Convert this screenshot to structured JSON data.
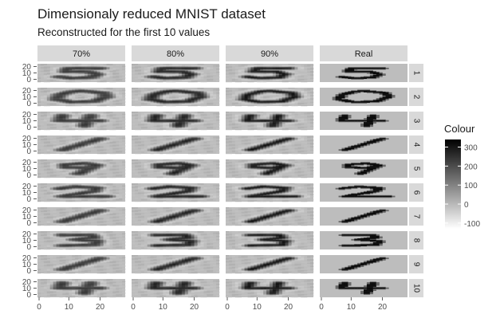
{
  "title": "Dimensionaly reduced MNIST dataset",
  "subtitle": "Reconstructed for the first 10 values",
  "chart_data": {
    "type": "heatmap",
    "panel_columns": [
      "70%",
      "80%",
      "90%",
      "Real"
    ],
    "panel_rows": [
      "1",
      "2",
      "3",
      "4",
      "5",
      "6",
      "7",
      "8",
      "9",
      "10"
    ],
    "x_ticks": [
      "0",
      "10",
      "20"
    ],
    "y_ticks": [
      "20",
      "10",
      "0"
    ],
    "xlim": [
      0,
      28
    ],
    "ylim": [
      0,
      28
    ],
    "legend": {
      "title": "Colour",
      "placement": "right",
      "ticks": [
        "300",
        "200",
        "100",
        "0",
        "-100"
      ],
      "tick_values": [
        300,
        200,
        100,
        0,
        -100
      ],
      "range": [
        -130,
        340
      ],
      "low_color": "#ffffff",
      "high_color": "#000000"
    },
    "digits": [
      "5",
      "0",
      "4",
      "1",
      "9",
      "2",
      "1",
      "3",
      "1",
      "4"
    ],
    "background_value": 0,
    "colors": {
      "strip_bg": "#d9d9d9",
      "panel_bg": "#bdbdbd",
      "text": "#4d4d4d"
    }
  }
}
